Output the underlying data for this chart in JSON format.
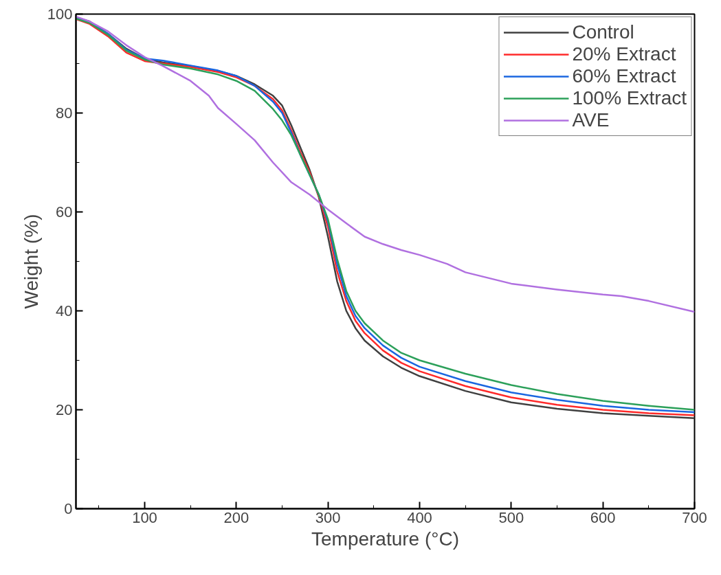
{
  "chart_data": {
    "type": "line",
    "xlabel": "Temperature (°C)",
    "ylabel": "Weight (%)",
    "x": [
      25,
      40,
      60,
      80,
      100,
      120,
      150,
      180,
      200,
      220,
      240,
      250,
      260,
      270,
      280,
      290,
      300,
      310,
      320,
      330,
      340,
      360,
      380,
      400,
      450,
      500,
      550,
      600,
      650,
      700
    ],
    "series": [
      {
        "name": "Control",
        "color": "#404040",
        "values": [
          99.3,
          98.5,
          96,
          93,
          91,
          90.2,
          89.5,
          88.5,
          87.5,
          85.8,
          83.5,
          81.5,
          77.5,
          73,
          68.5,
          63,
          55,
          46,
          40,
          36.5,
          34,
          30.8,
          28.5,
          26.8,
          23.8,
          21.5,
          20.2,
          19.3,
          18.8,
          18.3
        ]
      },
      {
        "name": "20% Extract",
        "color": "#ff2a2a",
        "values": [
          99,
          98,
          95.5,
          92.2,
          90.5,
          90,
          89.3,
          88.3,
          87.2,
          85.5,
          82.8,
          80.5,
          76.5,
          72,
          68,
          63.2,
          57,
          48,
          42,
          38,
          35.5,
          32,
          29.5,
          27.8,
          24.8,
          22.5,
          21,
          20,
          19.3,
          18.9
        ]
      },
      {
        "name": "60% Extract",
        "color": "#1a66e0",
        "values": [
          99.2,
          98.3,
          96,
          92.8,
          91,
          90.6,
          89.6,
          88.6,
          87.5,
          85.5,
          82.3,
          80,
          76,
          71.5,
          67.5,
          63.5,
          58,
          49.5,
          43,
          39,
          36.5,
          33,
          30.5,
          28.7,
          25.8,
          23.5,
          22,
          20.8,
          20,
          19.5
        ]
      },
      {
        "name": "100% Extract",
        "color": "#2ca05a",
        "values": [
          99.1,
          98.2,
          95.8,
          92.6,
          90.8,
          89.8,
          89,
          87.8,
          86.5,
          84.5,
          80.8,
          78.5,
          75.5,
          71.5,
          67.5,
          63.5,
          58.5,
          50.5,
          44,
          40,
          37.5,
          34,
          31.5,
          30,
          27.3,
          25,
          23.2,
          21.8,
          20.8,
          20
        ]
      },
      {
        "name": "AVE",
        "color": "#b070e0",
        "x": [
          25,
          40,
          60,
          80,
          100,
          120,
          150,
          170,
          180,
          200,
          220,
          240,
          260,
          280,
          300,
          320,
          340,
          360,
          380,
          400,
          430,
          450,
          500,
          550,
          600,
          620,
          650,
          700
        ],
        "values": [
          99.5,
          98.5,
          96.5,
          93.7,
          91.3,
          89.5,
          86.5,
          83.5,
          81,
          77.8,
          74.5,
          70,
          66,
          63.5,
          60.5,
          57.7,
          55,
          53.5,
          52.3,
          51.3,
          49.5,
          47.8,
          45.5,
          44.3,
          43.3,
          43,
          42,
          39.8
        ]
      }
    ],
    "xlim": [
      25,
      700
    ],
    "ylim": [
      0,
      100
    ],
    "xticks": [
      {
        "value": 50,
        "label": null
      },
      100,
      {
        "value": 150,
        "label": null
      },
      200,
      {
        "value": 250,
        "label": null
      },
      300,
      {
        "value": 350,
        "label": null
      },
      400,
      {
        "value": 450,
        "label": null
      },
      500,
      {
        "value": 550,
        "label": null
      },
      600,
      {
        "value": 650,
        "label": null
      },
      700
    ],
    "yticks": [
      0,
      {
        "value": 10,
        "label": null
      },
      20,
      {
        "value": 30,
        "label": null
      },
      40,
      {
        "value": 50,
        "label": null
      },
      60,
      {
        "value": 70,
        "label": null
      },
      80,
      {
        "value": 90,
        "label": null
      },
      100
    ],
    "legend": "top right",
    "grid": false,
    "line_style": "solid",
    "marker": "none"
  }
}
